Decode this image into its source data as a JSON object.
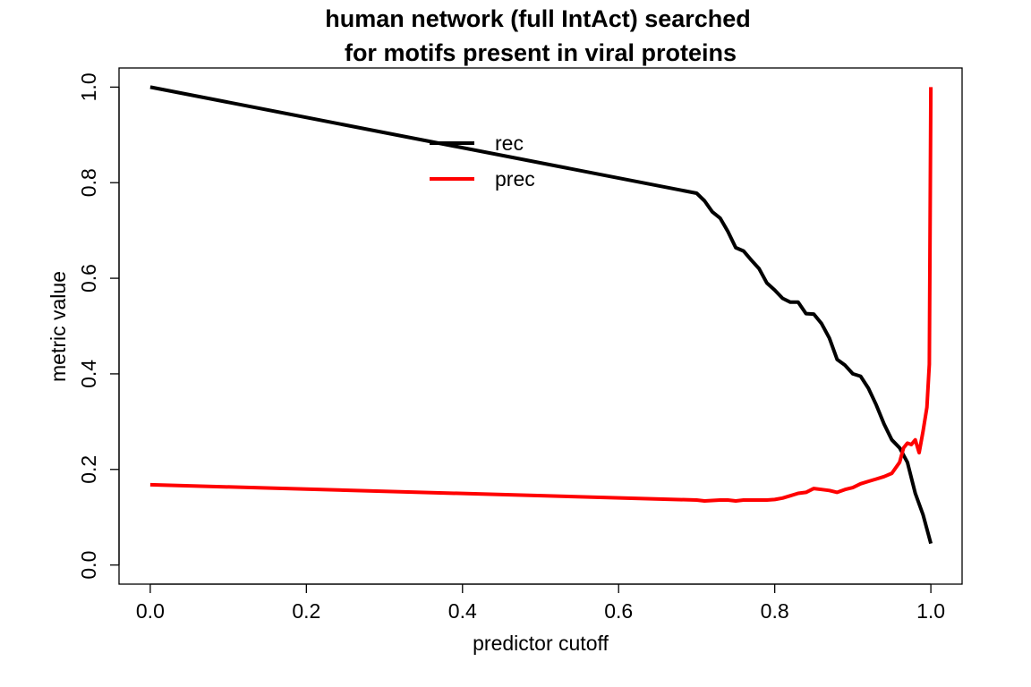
{
  "chart_data": {
    "type": "line",
    "title_lines": [
      "human network (full IntAct) searched",
      "for motifs present in viral proteins"
    ],
    "xlabel": "predictor cutoff",
    "ylabel": "metric value",
    "xlim": [
      -0.04,
      1.04
    ],
    "ylim": [
      -0.04,
      1.04
    ],
    "xticks": [
      0.0,
      0.2,
      0.4,
      0.6,
      0.8,
      1.0
    ],
    "xtick_labels": [
      "0.0",
      "0.2",
      "0.4",
      "0.6",
      "0.8",
      "1.0"
    ],
    "yticks": [
      0.0,
      0.2,
      0.4,
      0.6,
      0.8,
      1.0
    ],
    "ytick_labels": [
      "0.0",
      "0.2",
      "0.4",
      "0.6",
      "0.8",
      "1.0"
    ],
    "grid": false,
    "legend_position": "top-center",
    "series": [
      {
        "name": "rec",
        "color": "#000000",
        "x": [
          0.0,
          0.7,
          0.71,
          0.72,
          0.73,
          0.74,
          0.75,
          0.76,
          0.77,
          0.78,
          0.79,
          0.8,
          0.81,
          0.82,
          0.83,
          0.84,
          0.85,
          0.86,
          0.87,
          0.88,
          0.89,
          0.9,
          0.91,
          0.92,
          0.93,
          0.94,
          0.95,
          0.96,
          0.97,
          0.98,
          0.99,
          1.0
        ],
        "y": [
          1.0,
          0.778,
          0.762,
          0.739,
          0.726,
          0.698,
          0.664,
          0.657,
          0.638,
          0.62,
          0.59,
          0.575,
          0.558,
          0.55,
          0.55,
          0.526,
          0.525,
          0.505,
          0.475,
          0.43,
          0.418,
          0.4,
          0.395,
          0.37,
          0.335,
          0.295,
          0.262,
          0.245,
          0.215,
          0.15,
          0.105,
          0.045
        ]
      },
      {
        "name": "prec",
        "color": "#ff0000",
        "x": [
          0.0,
          0.7,
          0.71,
          0.72,
          0.73,
          0.74,
          0.75,
          0.76,
          0.77,
          0.78,
          0.79,
          0.8,
          0.81,
          0.82,
          0.83,
          0.84,
          0.85,
          0.86,
          0.87,
          0.88,
          0.89,
          0.9,
          0.91,
          0.92,
          0.93,
          0.94,
          0.95,
          0.96,
          0.965,
          0.97,
          0.975,
          0.98,
          0.985,
          0.99,
          0.995,
          0.998,
          1.0
        ],
        "y": [
          0.168,
          0.136,
          0.134,
          0.135,
          0.136,
          0.136,
          0.134,
          0.136,
          0.136,
          0.136,
          0.136,
          0.137,
          0.14,
          0.145,
          0.15,
          0.152,
          0.16,
          0.158,
          0.156,
          0.152,
          0.158,
          0.162,
          0.17,
          0.175,
          0.18,
          0.185,
          0.192,
          0.215,
          0.245,
          0.255,
          0.252,
          0.262,
          0.235,
          0.28,
          0.33,
          0.42,
          1.0
        ]
      }
    ]
  }
}
